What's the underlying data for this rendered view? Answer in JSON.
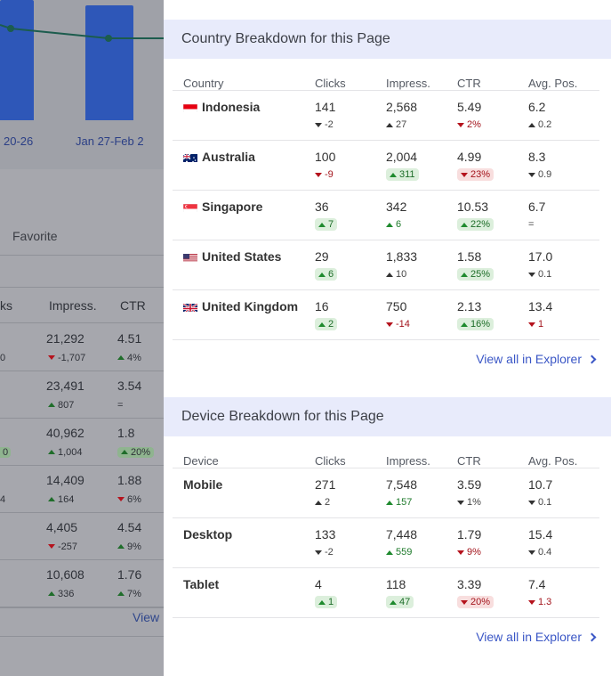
{
  "background_page": {
    "chart_labels": [
      "20-26",
      "Jan 27-Feb 2"
    ],
    "favorite_tab": "Favorite",
    "table_headers": [
      "ks",
      "Impress.",
      "CTR"
    ],
    "rows": [
      {
        "left": "0",
        "impress": "21,292",
        "impress_delta": "-1,707",
        "impress_dir": "down",
        "ctr": "4.51",
        "ctr_delta": "4%",
        "ctr_dir": "up"
      },
      {
        "left": "",
        "impress": "23,491",
        "impress_delta": "807",
        "impress_dir": "up",
        "ctr": "3.54",
        "ctr_delta": "=",
        "ctr_dir": "none"
      },
      {
        "left": "0",
        "impress": "40,962",
        "impress_delta": "1,004",
        "impress_dir": "up",
        "ctr": "1.8",
        "ctr_delta": "20%",
        "ctr_dir": "up"
      },
      {
        "left": "4",
        "impress": "14,409",
        "impress_delta": "164",
        "impress_dir": "up",
        "ctr": "1.88",
        "ctr_delta": "6%",
        "ctr_dir": "down"
      },
      {
        "left": "",
        "impress": "4,405",
        "impress_delta": "-257",
        "impress_dir": "down",
        "ctr": "4.54",
        "ctr_delta": "9%",
        "ctr_dir": "up"
      },
      {
        "left": "",
        "impress": "10,608",
        "impress_delta": "336",
        "impress_dir": "up",
        "ctr": "1.76",
        "ctr_delta": "7%",
        "ctr_dir": "up"
      }
    ],
    "view_link": "View"
  },
  "country": {
    "title": "Country Breakdown for this Page",
    "headers": [
      "Country",
      "Clicks",
      "Impress.",
      "CTR",
      "Avg. Pos."
    ],
    "rows": [
      {
        "name": "Indonesia",
        "flag": "flag-indonesia-icon",
        "clicks": "141",
        "clicks_delta": "-2",
        "clicks_style": "plain-down",
        "impress": "2,568",
        "impress_delta": "27",
        "impress_style": "plain-up",
        "ctr": "5.49",
        "ctr_delta": "2%",
        "ctr_style": "text-down",
        "pos": "6.2",
        "pos_delta": "0.2",
        "pos_style": "plain-up"
      },
      {
        "name": "Australia",
        "flag": "flag-australia-icon",
        "clicks": "100",
        "clicks_delta": "-9",
        "clicks_style": "text-down",
        "impress": "2,004",
        "impress_delta": "311",
        "impress_style": "pill-up",
        "ctr": "4.99",
        "ctr_delta": "23%",
        "ctr_style": "pill-down",
        "pos": "8.3",
        "pos_delta": "0.9",
        "pos_style": "plain-down"
      },
      {
        "name": "Singapore",
        "flag": "flag-singapore-icon",
        "clicks": "36",
        "clicks_delta": "7",
        "clicks_style": "pill-up",
        "impress": "342",
        "impress_delta": "6",
        "impress_style": "text-up",
        "ctr": "10.53",
        "ctr_delta": "22%",
        "ctr_style": "pill-up",
        "pos": "6.7",
        "pos_delta": "=",
        "pos_style": "plain-none"
      },
      {
        "name": "United States",
        "flag": "flag-us-icon",
        "clicks": "29",
        "clicks_delta": "6",
        "clicks_style": "pill-up",
        "impress": "1,833",
        "impress_delta": "10",
        "impress_style": "plain-up",
        "ctr": "1.58",
        "ctr_delta": "25%",
        "ctr_style": "pill-up",
        "pos": "17.0",
        "pos_delta": "0.1",
        "pos_style": "plain-down"
      },
      {
        "name": "United Kingdom",
        "flag": "flag-uk-icon",
        "clicks": "16",
        "clicks_delta": "2",
        "clicks_style": "pill-up",
        "impress": "750",
        "impress_delta": "-14",
        "impress_style": "text-down",
        "ctr": "2.13",
        "ctr_delta": "16%",
        "ctr_style": "pill-up",
        "pos": "13.4",
        "pos_delta": "1",
        "pos_style": "text-down"
      }
    ],
    "view_all": "View all in Explorer"
  },
  "device": {
    "title": "Device Breakdown for this Page",
    "headers": [
      "Device",
      "Clicks",
      "Impress.",
      "CTR",
      "Avg. Pos."
    ],
    "rows": [
      {
        "name": "Mobile",
        "clicks": "271",
        "clicks_delta": "2",
        "clicks_style": "plain-up",
        "impress": "7,548",
        "impress_delta": "157",
        "impress_style": "text-up",
        "ctr": "3.59",
        "ctr_delta": "1%",
        "ctr_style": "plain-down",
        "pos": "10.7",
        "pos_delta": "0.1",
        "pos_style": "plain-down"
      },
      {
        "name": "Desktop",
        "clicks": "133",
        "clicks_delta": "-2",
        "clicks_style": "plain-down",
        "impress": "7,448",
        "impress_delta": "559",
        "impress_style": "text-up",
        "ctr": "1.79",
        "ctr_delta": "9%",
        "ctr_style": "text-down",
        "pos": "15.4",
        "pos_delta": "0.4",
        "pos_style": "plain-down"
      },
      {
        "name": "Tablet",
        "clicks": "4",
        "clicks_delta": "1",
        "clicks_style": "pill-up",
        "impress": "118",
        "impress_delta": "47",
        "impress_style": "pill-up",
        "ctr": "3.39",
        "ctr_delta": "20%",
        "ctr_style": "pill-down",
        "pos": "7.4",
        "pos_delta": "1.3",
        "pos_style": "text-down"
      }
    ],
    "view_all": "View all in Explorer"
  },
  "colors": {
    "accent": "#3b57c6",
    "header_bg": "#e8ebfb",
    "up": "#1d7a2a",
    "down": "#a3141c"
  }
}
